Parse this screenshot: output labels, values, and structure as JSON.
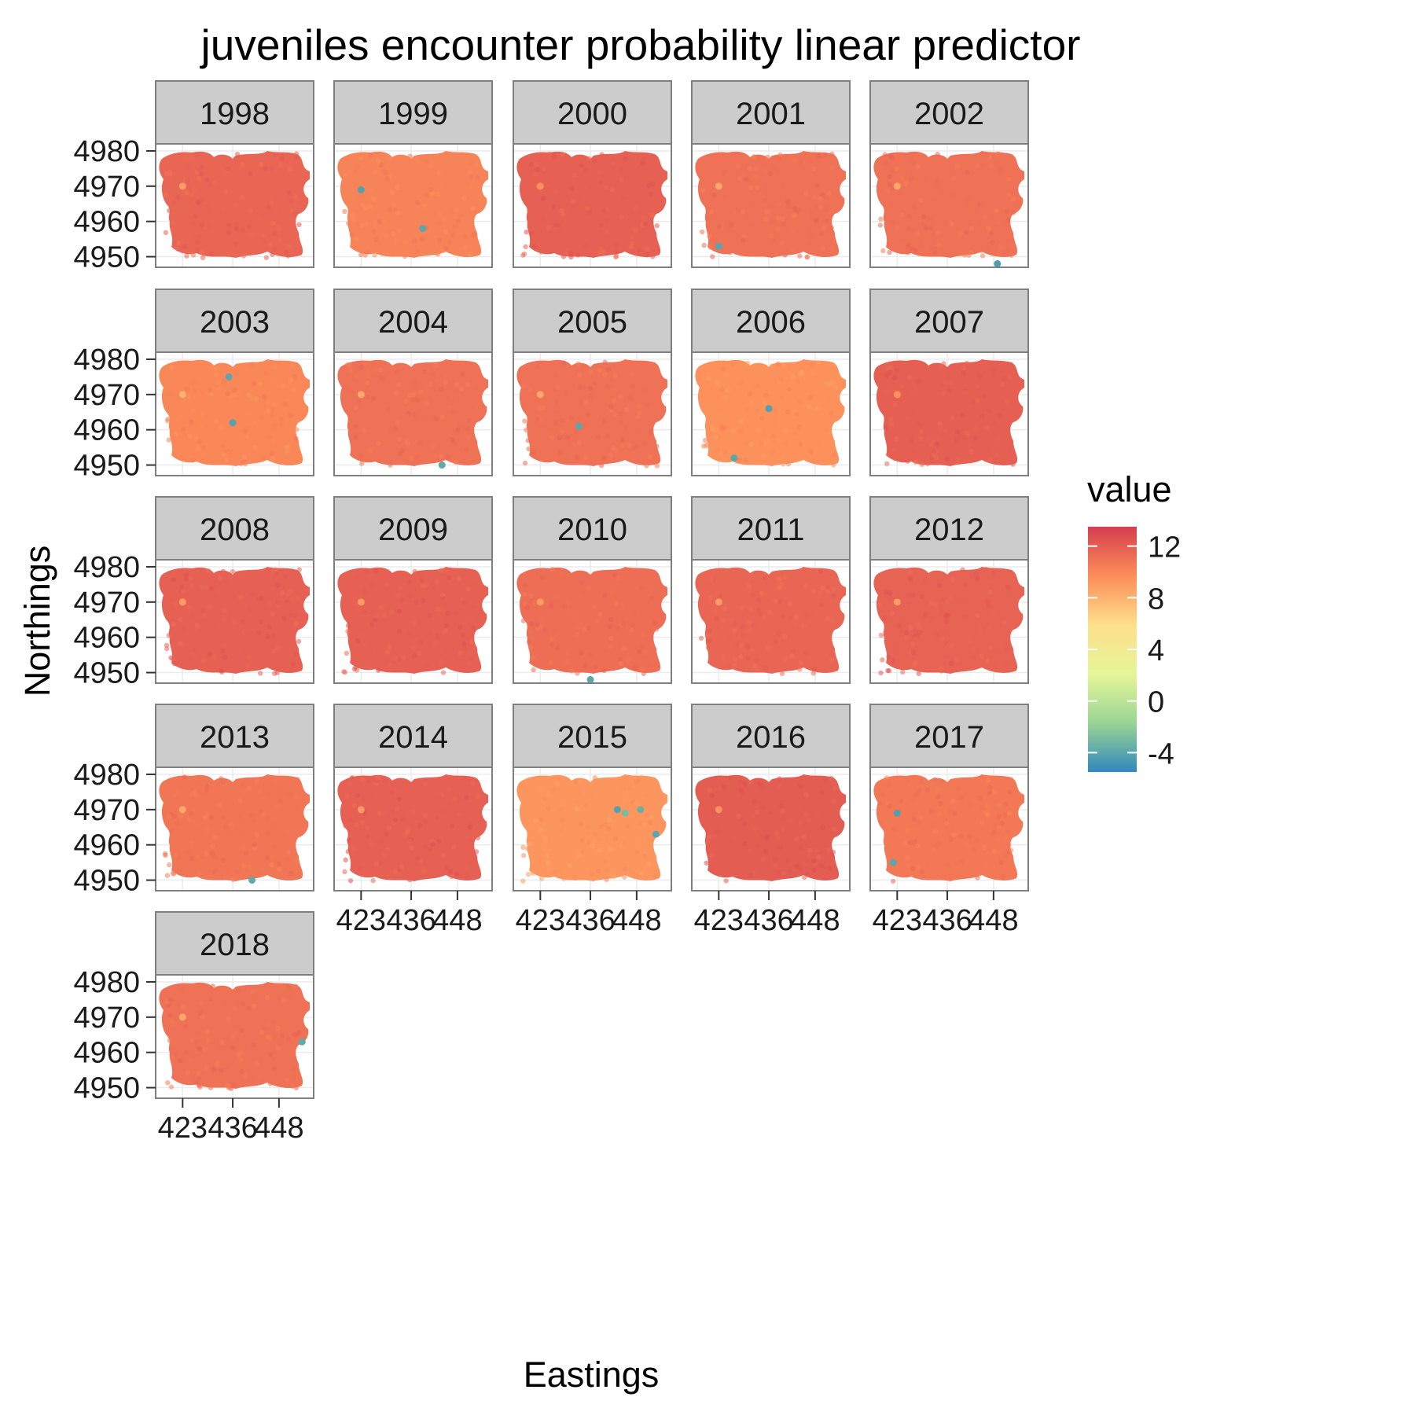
{
  "chart_data": {
    "type": "heatmap",
    "title": "juveniles encounter probability linear predictor",
    "xlabel": "Eastings",
    "ylabel": "Northings",
    "x_ticks": [
      423,
      436,
      448
    ],
    "y_ticks": [
      4950,
      4960,
      4970,
      4980
    ],
    "xlim": [
      416,
      457
    ],
    "ylim": [
      4947,
      4982
    ],
    "legend": {
      "title": "value",
      "ticks": [
        12,
        8,
        4,
        0,
        -4
      ],
      "min": -5.5,
      "max": 13.5,
      "position": "right",
      "colors": [
        "#3288bd",
        "#99d594",
        "#e6f598",
        "#fee08b",
        "#fc8d59",
        "#d53e4f"
      ]
    },
    "panels": [
      {
        "year": "1998",
        "base_value": 11.6,
        "low_points": [
          [
            423,
            4970,
            9.0
          ]
        ]
      },
      {
        "year": "1999",
        "base_value": 10.2,
        "low_points": [
          [
            423,
            4969,
            -4.2
          ],
          [
            439,
            4958,
            -4.0
          ]
        ]
      },
      {
        "year": "2000",
        "base_value": 11.8,
        "low_points": [
          [
            423,
            4970,
            9.5
          ]
        ]
      },
      {
        "year": "2001",
        "base_value": 11.0,
        "low_points": [
          [
            423,
            4953,
            -4.0
          ],
          [
            423,
            4970,
            8.5
          ]
        ]
      },
      {
        "year": "2002",
        "base_value": 11.0,
        "low_points": [
          [
            449,
            4948,
            -4.5
          ],
          [
            423,
            4970,
            8.5
          ]
        ]
      },
      {
        "year": "2003",
        "base_value": 10.0,
        "low_points": [
          [
            435,
            4975,
            -4.0
          ],
          [
            436,
            4962,
            -4.2
          ],
          [
            423,
            4970,
            8.0
          ]
        ]
      },
      {
        "year": "2004",
        "base_value": 11.0,
        "low_points": [
          [
            444,
            4950,
            -3.8
          ],
          [
            423,
            4970,
            8.5
          ]
        ]
      },
      {
        "year": "2005",
        "base_value": 11.0,
        "low_points": [
          [
            433,
            4961,
            -4.0
          ],
          [
            423,
            4970,
            8.5
          ]
        ]
      },
      {
        "year": "2006",
        "base_value": 9.5,
        "low_points": [
          [
            436,
            4966,
            -4.3
          ],
          [
            427,
            4952,
            -4.0
          ]
        ]
      },
      {
        "year": "2007",
        "base_value": 11.9,
        "low_points": [
          [
            423,
            4970,
            9.5
          ]
        ]
      },
      {
        "year": "2008",
        "base_value": 11.8,
        "low_points": [
          [
            423,
            4970,
            9.0
          ]
        ]
      },
      {
        "year": "2009",
        "base_value": 11.8,
        "low_points": [
          [
            423,
            4970,
            9.0
          ]
        ]
      },
      {
        "year": "2010",
        "base_value": 11.2,
        "low_points": [
          [
            436,
            4948,
            -4.0
          ],
          [
            423,
            4970,
            9.0
          ]
        ]
      },
      {
        "year": "2011",
        "base_value": 11.6,
        "low_points": [
          [
            423,
            4970,
            9.0
          ]
        ]
      },
      {
        "year": "2012",
        "base_value": 11.7,
        "low_points": [
          [
            423,
            4970,
            9.0
          ]
        ]
      },
      {
        "year": "2013",
        "base_value": 10.8,
        "low_points": [
          [
            441,
            4950,
            -3.8
          ],
          [
            423,
            4970,
            8.5
          ]
        ]
      },
      {
        "year": "2014",
        "base_value": 11.8,
        "low_points": [
          [
            423,
            4970,
            9.0
          ]
        ]
      },
      {
        "year": "2015",
        "base_value": 9.3,
        "low_points": [
          [
            443,
            4970,
            -4.2
          ],
          [
            445,
            4969,
            -3.0
          ],
          [
            449,
            4970,
            -3.5
          ],
          [
            453,
            4963,
            -4.0
          ]
        ]
      },
      {
        "year": "2016",
        "base_value": 12.0,
        "low_points": [
          [
            423,
            4970,
            9.5
          ]
        ]
      },
      {
        "year": "2017",
        "base_value": 10.7,
        "low_points": [
          [
            423,
            4969,
            -4.3
          ],
          [
            422,
            4955,
            -4.0
          ]
        ]
      },
      {
        "year": "2018",
        "base_value": 11.0,
        "low_points": [
          [
            454,
            4963,
            -3.8
          ],
          [
            423,
            4970,
            8.5
          ]
        ]
      }
    ]
  }
}
